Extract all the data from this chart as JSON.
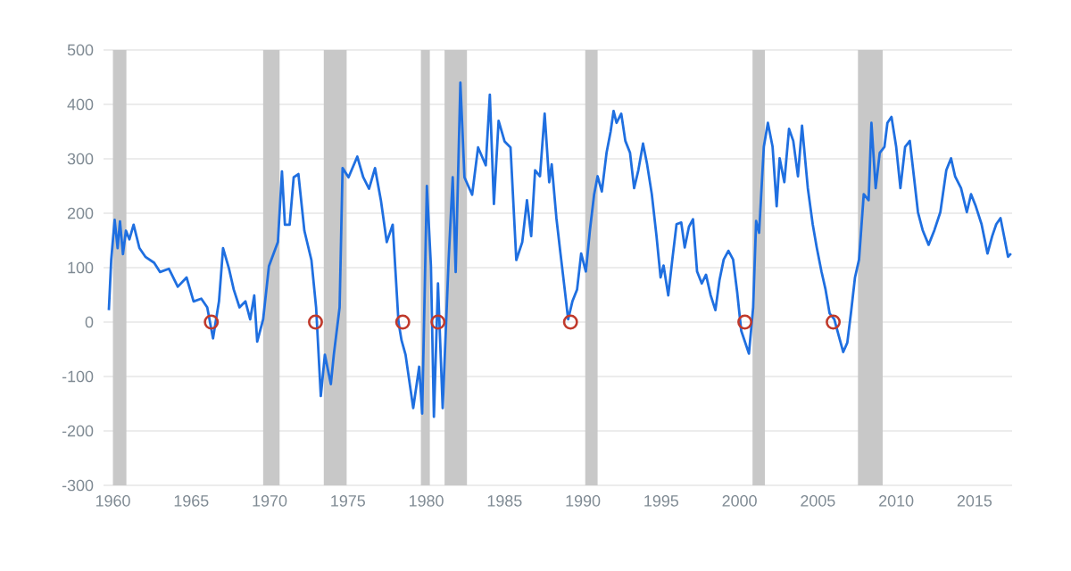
{
  "chart_data": {
    "type": "line",
    "xlim": [
      1959.4,
      2017.4
    ],
    "ylim": [
      -300,
      500
    ],
    "xticks": [
      1960,
      1965,
      1970,
      1975,
      1980,
      1985,
      1990,
      1995,
      2000,
      2005,
      2010,
      2015
    ],
    "yticks": [
      -300,
      -200,
      -100,
      0,
      100,
      200,
      300,
      400,
      500
    ],
    "grid": "y",
    "bands": [
      {
        "axis": "x",
        "from": 1960.0,
        "to": 1960.86,
        "color": "#c8c8c8"
      },
      {
        "axis": "x",
        "from": 1969.59,
        "to": 1970.64,
        "color": "#c8c8c8"
      },
      {
        "axis": "x",
        "from": 1973.46,
        "to": 1974.92,
        "color": "#c8c8c8"
      },
      {
        "axis": "x",
        "from": 1979.66,
        "to": 1980.23,
        "color": "#c8c8c8"
      },
      {
        "axis": "x",
        "from": 1981.17,
        "to": 1982.6,
        "color": "#c8c8c8"
      },
      {
        "axis": "x",
        "from": 1990.15,
        "to": 1990.94,
        "color": "#c8c8c8"
      },
      {
        "axis": "x",
        "from": 2000.83,
        "to": 2001.62,
        "color": "#c8c8c8"
      },
      {
        "axis": "x",
        "from": 2007.56,
        "to": 2009.14,
        "color": "#c8c8c8"
      }
    ],
    "series": [
      {
        "color": "#1f6fe0",
        "marker": "none",
        "line_style": "solid",
        "x": [
          1959.74,
          1959.89,
          1960.11,
          1960.3,
          1960.45,
          1960.64,
          1960.83,
          1961.05,
          1961.32,
          1961.69,
          1962.07,
          1962.63,
          1963.01,
          1963.57,
          1964.14,
          1964.7,
          1965.15,
          1965.64,
          1966.02,
          1966.39,
          1966.77,
          1967.03,
          1967.41,
          1967.71,
          1968.08,
          1968.46,
          1968.76,
          1969.02,
          1969.21,
          1969.59,
          1969.96,
          1970.53,
          1970.79,
          1970.98,
          1971.28,
          1971.54,
          1971.84,
          1972.22,
          1972.67,
          1972.97,
          1973.27,
          1973.53,
          1973.91,
          1974.1,
          1974.47,
          1974.66,
          1975.04,
          1975.6,
          1975.98,
          1976.35,
          1976.73,
          1977.11,
          1977.48,
          1977.86,
          1978.23,
          1978.42,
          1978.68,
          1979.17,
          1979.55,
          1979.74,
          1980.04,
          1980.3,
          1980.49,
          1980.75,
          1981.05,
          1981.43,
          1981.69,
          1981.88,
          1982.18,
          1982.44,
          1982.93,
          1983.31,
          1983.8,
          1984.06,
          1984.32,
          1984.62,
          1985.0,
          1985.38,
          1985.75,
          1986.13,
          1986.43,
          1986.7,
          1986.95,
          1987.26,
          1987.56,
          1987.85,
          1988.01,
          1988.31,
          1988.57,
          1988.84,
          1989.06,
          1989.33,
          1989.63,
          1989.89,
          1990.19,
          1990.45,
          1990.72,
          1990.94,
          1991.21,
          1991.51,
          1991.77,
          1991.96,
          1992.15,
          1992.45,
          1992.71,
          1993.01,
          1993.27,
          1993.54,
          1993.84,
          1994.1,
          1994.4,
          1994.7,
          1994.96,
          1995.15,
          1995.45,
          1995.71,
          1995.98,
          1996.28,
          1996.5,
          1996.77,
          1997.03,
          1997.29,
          1997.59,
          1997.86,
          1998.16,
          1998.46,
          1998.72,
          1998.99,
          1999.29,
          1999.59,
          1999.85,
          2000.11,
          2000.6,
          2000.87,
          2001.06,
          2001.25,
          2001.55,
          2001.81,
          2002.11,
          2002.37,
          2002.56,
          2002.86,
          2003.16,
          2003.43,
          2003.73,
          2003.99,
          2004.36,
          2004.67,
          2004.93,
          2005.23,
          2005.49,
          2005.75,
          2006.05,
          2006.35,
          2006.62,
          2006.88,
          2007.11,
          2007.37,
          2007.63,
          2007.93,
          2008.24,
          2008.42,
          2008.69,
          2008.95,
          2009.25,
          2009.44,
          2009.7,
          2010.0,
          2010.27,
          2010.57,
          2010.87,
          2011.13,
          2011.39,
          2011.69,
          2012.07,
          2012.44,
          2012.82,
          2013.2,
          2013.5,
          2013.76,
          2014.14,
          2014.51,
          2014.78,
          2015.08,
          2015.45,
          2015.83,
          2016.13,
          2016.39,
          2016.66,
          2016.96,
          2017.14,
          2017.33
        ],
        "values": [
          22,
          114,
          188,
          136,
          185,
          125,
          168,
          152,
          179,
          136,
          120,
          109,
          92,
          98,
          65,
          82,
          38,
          43,
          27,
          -30,
          38,
          136,
          98,
          60,
          27,
          38,
          5,
          49,
          -36,
          5,
          103,
          147,
          277,
          179,
          179,
          266,
          272,
          168,
          114,
          27,
          -136,
          -60,
          -114,
          -60,
          27,
          283,
          266,
          304,
          266,
          245,
          283,
          223,
          147,
          179,
          0,
          -33,
          -60,
          -158,
          -82,
          -168,
          250,
          103,
          -174,
          71,
          -158,
          114,
          266,
          92,
          440,
          266,
          234,
          321,
          288,
          418,
          217,
          370,
          332,
          321,
          114,
          147,
          224,
          158,
          279,
          268,
          383,
          257,
          290,
          191,
          126,
          60,
          5,
          38,
          60,
          126,
          93,
          169,
          235,
          268,
          240,
          311,
          350,
          388,
          366,
          383,
          333,
          311,
          246,
          279,
          328,
          290,
          235,
          158,
          82,
          104,
          49,
          115,
          180,
          183,
          137,
          175,
          189,
          93,
          71,
          87,
          49,
          22,
          77,
          115,
          131,
          115,
          55,
          -16,
          -58,
          27,
          186,
          164,
          322,
          366,
          322,
          213,
          301,
          257,
          355,
          333,
          268,
          361,
          246,
          180,
          137,
          93,
          60,
          16,
          5,
          -27,
          -55,
          -38,
          16,
          82,
          115,
          235,
          224,
          366,
          246,
          311,
          322,
          366,
          377,
          322,
          246,
          322,
          333,
          268,
          202,
          169,
          142,
          169,
          202,
          279,
          301,
          268,
          246,
          202,
          235,
          213,
          180,
          126,
          158,
          180,
          191,
          147,
          120,
          126
        ]
      },
      {
        "type": "scatter",
        "color": "#c0392b",
        "marker": "circle",
        "x": [
          1966.28,
          1972.93,
          1978.5,
          1980.75,
          1989.21,
          2000.34,
          2005.98
        ],
        "values": [
          0,
          0,
          0,
          0,
          0,
          0,
          0
        ]
      }
    ]
  }
}
